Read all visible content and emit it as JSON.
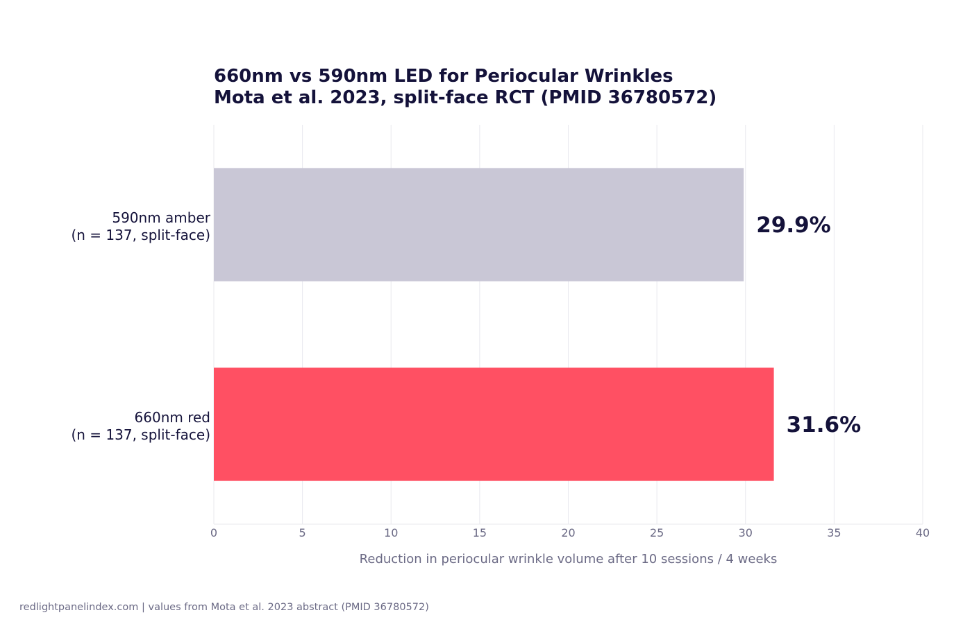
{
  "chart_data": {
    "type": "bar",
    "orientation": "horizontal",
    "title": [
      "660nm vs 590nm LED for Periocular Wrinkles",
      "Mota et al. 2023, split-face RCT (PMID 36780572)"
    ],
    "categories": [
      [
        "590nm amber",
        "(n = 137, split-face)"
      ],
      [
        "660nm red",
        "(n = 137, split-face)"
      ]
    ],
    "values": [
      29.9,
      31.6
    ],
    "data_labels": [
      "29.9%",
      "31.6%"
    ],
    "colors": [
      "#c9c7d6",
      "#ff5063"
    ],
    "xlabel": "Reduction in periocular wrinkle volume after 10 sessions / 4 weeks",
    "xlim": [
      0,
      40
    ],
    "xticks": [
      0,
      5,
      10,
      15,
      20,
      25,
      30,
      35,
      40
    ],
    "grid": "vertical"
  },
  "footer": "redlightpanelindex.com | values from Mota et al. 2023 abstract (PMID 36780572)"
}
